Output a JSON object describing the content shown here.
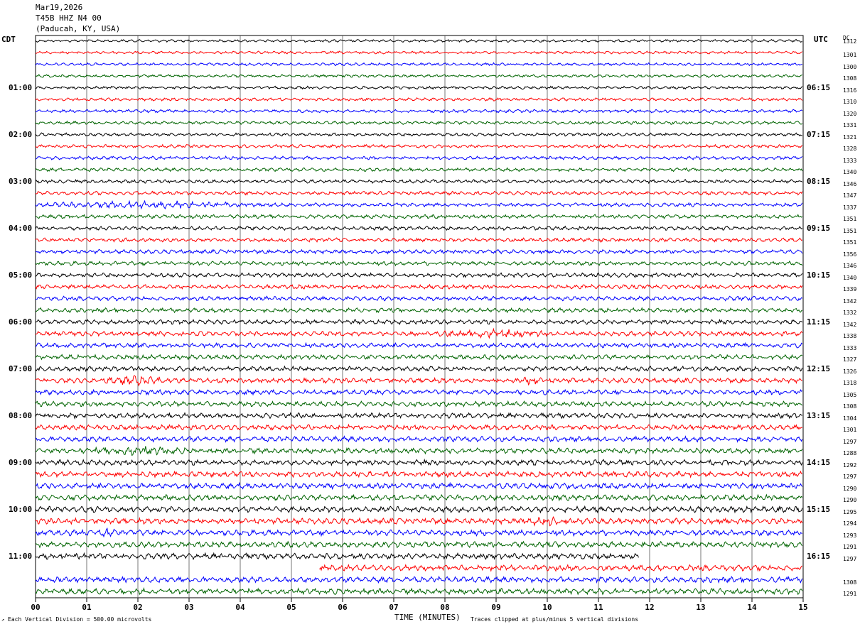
{
  "header": {
    "date": "Mar19,2026",
    "station": "T45B HHZ N4 00",
    "location": "(Paducah, KY, USA)"
  },
  "left_tz": "CDT",
  "right_tz": "UTC",
  "dc_label": "DC",
  "footer": {
    "scale_note": "Each Vertical Division =  500.00 microvolts",
    "xlabel": "TIME (MINUTES)",
    "clip_note": "Traces clipped at plus/minus 5 vertical divisions"
  },
  "chart_data": {
    "type": "line",
    "title": "",
    "xlabel": "TIME (MINUTES)",
    "xlim": [
      0,
      15
    ],
    "x_ticks": [
      "00",
      "01",
      "02",
      "03",
      "04",
      "05",
      "06",
      "07",
      "08",
      "09",
      "10",
      "11",
      "12",
      "13",
      "14",
      "15"
    ],
    "grid": true,
    "trace_colors": [
      "#000000",
      "#ff0000",
      "#0000ff",
      "#006400"
    ],
    "left_hour_labels": [
      "01:00",
      "02:00",
      "03:00",
      "04:00",
      "05:00",
      "06:00",
      "07:00",
      "08:00",
      "09:00",
      "10:00",
      "11:00"
    ],
    "right_hour_labels": [
      "06:15",
      "07:15",
      "08:15",
      "09:15",
      "10:15",
      "11:15",
      "12:15",
      "13:15",
      "14:15",
      "15:15",
      "16:15"
    ],
    "dc_offsets": [
      "1312",
      "1301",
      "1300",
      "1308",
      "1316",
      "1310",
      "1320",
      "1331",
      "1321",
      "1328",
      "1333",
      "1340",
      "1346",
      "1347",
      "1337",
      "1351",
      "1351",
      "1351",
      "1356",
      "1346",
      "1340",
      "1339",
      "1342",
      "1332",
      "1342",
      "1338",
      "1333",
      "1327",
      "1326",
      "1318",
      "1305",
      "1308",
      "1304",
      "1301",
      "1297",
      "1288",
      "1292",
      "1297",
      "1290",
      "1290",
      "1295",
      "1294",
      "1293",
      "1291",
      "1297",
      "",
      "1308",
      "1291"
    ],
    "partial_traces": [
      {
        "row": 44,
        "x_end": 11.8
      },
      {
        "row": 45,
        "x_start": 5.55
      }
    ],
    "events": [
      {
        "row": 14,
        "x_start": 0.0,
        "x_end": 4.5
      },
      {
        "row": 25,
        "x_start": 7.7,
        "x_end": 10.2
      },
      {
        "row": 29,
        "x_start": 1.2,
        "x_end": 2.8
      },
      {
        "row": 29,
        "x_start": 9.3,
        "x_end": 10.0
      },
      {
        "row": 35,
        "x_start": 1.0,
        "x_end": 3.0
      },
      {
        "row": 41,
        "x_start": 9.5,
        "x_end": 10.4
      },
      {
        "row": 42,
        "x_start": 1.2,
        "x_end": 1.6
      }
    ]
  }
}
